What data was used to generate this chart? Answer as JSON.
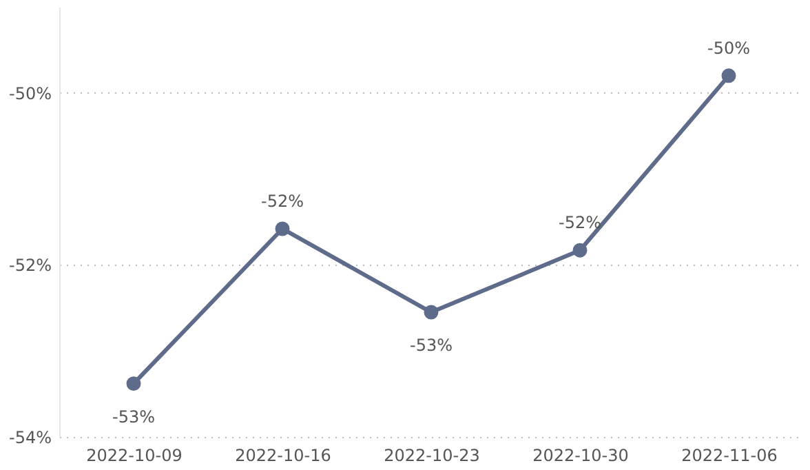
{
  "chart_data": {
    "type": "line",
    "categories": [
      "2022-10-09",
      "2022-10-16",
      "2022-10-23",
      "2022-10-30",
      "2022-11-06"
    ],
    "series": [
      {
        "color": "#5f6b8a",
        "values": [
          -53.38,
          -51.58,
          -52.55,
          -51.83,
          -49.8
        ],
        "value_labels": [
          "-53%",
          "-52%",
          "-53%",
          "-52%",
          "-50%"
        ]
      }
    ],
    "ylim": [
      -54,
      -49
    ],
    "yticks": [
      {
        "value": -54,
        "label": "-54%"
      },
      {
        "value": -52,
        "label": "-52%"
      },
      {
        "value": -50,
        "label": "-50%"
      }
    ],
    "grid": "y",
    "marker": "circle",
    "line_style": "solid"
  }
}
